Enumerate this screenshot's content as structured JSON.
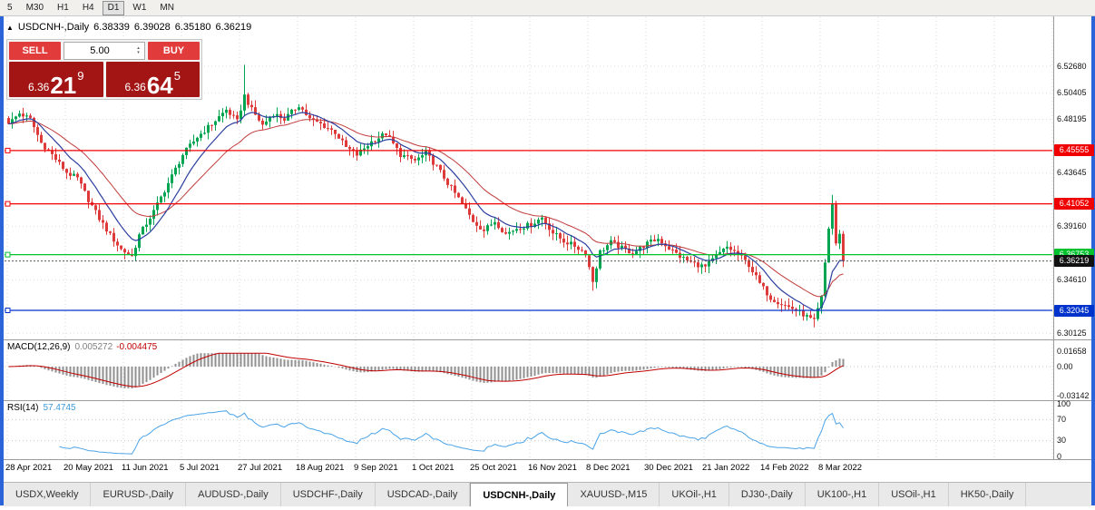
{
  "colors": {
    "window_frame": "#2B63D9",
    "candle_up": "#00A551",
    "candle_down": "#DF3A3A",
    "ma_fast": "#2B3FA0",
    "ma_slow": "#C23B3B",
    "macd_hist": "#909090",
    "macd_signal": "#C00000",
    "rsi_line": "#4AA3E8",
    "trade_button_red": "#E23B3B",
    "price_display_red": "#A31515",
    "current_price_box": "#111111",
    "grid": "#D9D9D9"
  },
  "icons": {
    "collapse_arrow": "▲",
    "spinner_up": "▴",
    "spinner_down": "▾"
  },
  "toolbar": {
    "timeframes": [
      "5",
      "M30",
      "H1",
      "H4",
      "D1",
      "W1",
      "MN"
    ],
    "active": "D1"
  },
  "symbol_header": {
    "title": "USDCNH-,Daily",
    "open": "6.38339",
    "high": "6.39028",
    "low": "6.35180",
    "close": "6.36219"
  },
  "trade_panel": {
    "sell_label": "SELL",
    "buy_label": "BUY",
    "lot_value": "5.00",
    "sell_price": {
      "prefix": "6.36",
      "pips": "21",
      "pipette": "9"
    },
    "buy_price": {
      "prefix": "6.36",
      "pips": "64",
      "pipette": "5"
    }
  },
  "tabs": {
    "items": [
      "USDX,Weekly",
      "EURUSD-,Daily",
      "AUDUSD-,Daily",
      "USDCHF-,Daily",
      "USDCAD-,Daily",
      "USDCNH-,Daily",
      "XAUUSD-,M15",
      "UKOil-,H1",
      "DJ30-,Daily",
      "UK100-,H1",
      "USOil-,H1",
      "HK50-,Daily"
    ],
    "active": "USDCNH-,Daily"
  },
  "chart_data": {
    "type": "candlestick",
    "symbol": "USDCNH-",
    "timeframe": "Daily",
    "bars": 231,
    "ylim": [
      6.2959,
      6.569
    ],
    "close_keypoints": [
      [
        0,
        6.478
      ],
      [
        3,
        6.487
      ],
      [
        6,
        6.482
      ],
      [
        9,
        6.462
      ],
      [
        12,
        6.452
      ],
      [
        16,
        6.437
      ],
      [
        19,
        6.432
      ],
      [
        22,
        6.414
      ],
      [
        25,
        6.398
      ],
      [
        28,
        6.384
      ],
      [
        31,
        6.372
      ],
      [
        34,
        6.366
      ],
      [
        36,
        6.384
      ],
      [
        40,
        6.404
      ],
      [
        44,
        6.428
      ],
      [
        48,
        6.452
      ],
      [
        52,
        6.467
      ],
      [
        56,
        6.478
      ],
      [
        60,
        6.49
      ],
      [
        63,
        6.48
      ],
      [
        65,
        6.502
      ],
      [
        67,
        6.49
      ],
      [
        70,
        6.477
      ],
      [
        73,
        6.487
      ],
      [
        76,
        6.482
      ],
      [
        80,
        6.494
      ],
      [
        83,
        6.482
      ],
      [
        86,
        6.478
      ],
      [
        90,
        6.471
      ],
      [
        93,
        6.458
      ],
      [
        96,
        6.452
      ],
      [
        100,
        6.463
      ],
      [
        104,
        6.47
      ],
      [
        108,
        6.452
      ],
      [
        112,
        6.447
      ],
      [
        115,
        6.453
      ],
      [
        118,
        6.442
      ],
      [
        121,
        6.428
      ],
      [
        124,
        6.415
      ],
      [
        128,
        6.396
      ],
      [
        131,
        6.388
      ],
      [
        134,
        6.396
      ],
      [
        137,
        6.385
      ],
      [
        140,
        6.39
      ],
      [
        144,
        6.393
      ],
      [
        147,
        6.399
      ],
      [
        150,
        6.386
      ],
      [
        153,
        6.379
      ],
      [
        156,
        6.375
      ],
      [
        159,
        6.369
      ],
      [
        161,
        6.345
      ],
      [
        163,
        6.37
      ],
      [
        166,
        6.378
      ],
      [
        169,
        6.373
      ],
      [
        172,
        6.369
      ],
      [
        176,
        6.377
      ],
      [
        179,
        6.381
      ],
      [
        182,
        6.373
      ],
      [
        185,
        6.366
      ],
      [
        188,
        6.361
      ],
      [
        192,
        6.357
      ],
      [
        195,
        6.366
      ],
      [
        198,
        6.374
      ],
      [
        201,
        6.368
      ],
      [
        204,
        6.359
      ],
      [
        207,
        6.343
      ],
      [
        210,
        6.331
      ],
      [
        213,
        6.326
      ],
      [
        216,
        6.322
      ],
      [
        219,
        6.317
      ],
      [
        222,
        6.311
      ],
      [
        224,
        6.331
      ],
      [
        226,
        6.39
      ],
      [
        227,
        6.41
      ],
      [
        228,
        6.377
      ],
      [
        229,
        6.384
      ],
      [
        230,
        6.36219
      ]
    ],
    "wick_overrides": {
      "65": {
        "high": 6.528
      },
      "161": {
        "low": 6.337
      },
      "222": {
        "low": 6.306
      },
      "227": {
        "high": 6.418
      }
    },
    "hlines": [
      {
        "price": 6.45555,
        "label": "6.45555",
        "color": "#F00000"
      },
      {
        "price": 6.41052,
        "label": "6.41052",
        "color": "#F00000"
      },
      {
        "price": 6.36753,
        "label": "6.36753",
        "color": "#00C22E"
      },
      {
        "price": 6.32045,
        "label": "6.32045",
        "color": "#0033CC"
      }
    ],
    "current_price": {
      "value": 6.36219,
      "label": "6.36219"
    },
    "y_axis_labels": [
      [
        6.5268,
        "6.52680"
      ],
      [
        6.50405,
        "6.50405"
      ],
      [
        6.48195,
        "6.48195"
      ],
      [
        6.43645,
        "6.43645"
      ],
      [
        6.3916,
        "6.39160"
      ],
      [
        6.3461,
        "6.34610"
      ],
      [
        6.30125,
        "6.30125"
      ]
    ],
    "x_axis_labels": [
      [
        0,
        "28 Apr 2021"
      ],
      [
        16,
        "20 May 2021"
      ],
      [
        32,
        "11 Jun 2021"
      ],
      [
        48,
        "5 Jul 2021"
      ],
      [
        64,
        "27 Jul 2021"
      ],
      [
        80,
        "18 Aug 2021"
      ],
      [
        96,
        "9 Sep 2021"
      ],
      [
        112,
        "1 Oct 2021"
      ],
      [
        128,
        "25 Oct 2021"
      ],
      [
        144,
        "16 Nov 2021"
      ],
      [
        160,
        "8 Dec 2021"
      ],
      [
        176,
        "30 Dec 2021"
      ],
      [
        192,
        "21 Jan 2022"
      ],
      [
        208,
        "14 Feb 2022"
      ],
      [
        224,
        "8 Mar 2022"
      ]
    ],
    "indicators": {
      "macd": {
        "name": "MACD(12,26,9)",
        "value_main": "0.005272",
        "value_signal": "-0.004475",
        "axis": [
          {
            "v": 0.01658,
            "label": "0.01658"
          },
          {
            "v": 0,
            "label": "0.00"
          },
          {
            "v": -0.03142,
            "label": "-0.03142"
          }
        ],
        "clamp": [
          -0.0315,
          0.0145
        ]
      },
      "rsi": {
        "name": "RSI(14)",
        "value": "57.4745",
        "axis": [
          {
            "v": 100,
            "label": "100"
          },
          {
            "v": 70,
            "label": "70"
          },
          {
            "v": 30,
            "label": "30"
          },
          {
            "v": 0,
            "label": "0"
          }
        ],
        "levels": [
          70,
          30
        ]
      }
    }
  }
}
